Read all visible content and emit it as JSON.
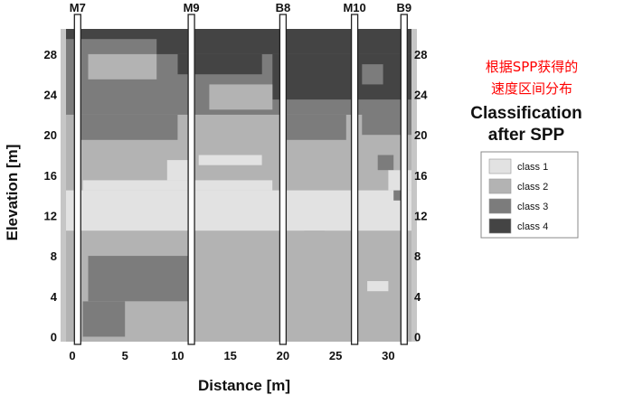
{
  "chart_data": {
    "type": "heatmap",
    "xlabel": "Distance [m]",
    "ylabel": "Elevation [m]",
    "xlim": [
      -0.6,
      32.2
    ],
    "ylim": [
      -0.5,
      30.5
    ],
    "x_ticks": [
      "0",
      "5",
      "10",
      "15",
      "20",
      "25",
      "30"
    ],
    "y_ticks": [
      "0",
      "4",
      "8",
      "12",
      "16",
      "20",
      "24",
      "28"
    ],
    "wells": [
      {
        "name": "M7",
        "x": 0.5
      },
      {
        "name": "M9",
        "x": 11.3
      },
      {
        "name": "B8",
        "x": 20.0
      },
      {
        "name": "M10",
        "x": 26.8
      },
      {
        "name": "B9",
        "x": 31.5
      }
    ],
    "annotation": "根据SPP获得的\n速度区间分布",
    "legend": {
      "title": "Classification\nafter SPP",
      "entries": [
        {
          "label": "class 1",
          "color": "#e2e2e2"
        },
        {
          "label": "class 2",
          "color": "#b3b3b3"
        },
        {
          "label": "class 3",
          "color": "#7c7c7c"
        },
        {
          "label": "class 4",
          "color": "#444444"
        }
      ]
    },
    "colors": {
      "class1": "#e2e2e2",
      "class2": "#b3b3b3",
      "class3": "#7c7c7c",
      "class4": "#444444",
      "side_strip": "#c6c6c6"
    },
    "regions": [
      {
        "class": 2,
        "x": [
          -0.6,
          32.2
        ],
        "y": [
          -0.5,
          30.5
        ]
      },
      {
        "class": 3,
        "x": [
          -0.6,
          32.2
        ],
        "y": [
          22.0,
          30.5
        ]
      },
      {
        "class": 4,
        "x": [
          -0.6,
          32.2
        ],
        "y": [
          29.5,
          30.5
        ]
      },
      {
        "class": 4,
        "x": [
          8.0,
          32.2
        ],
        "y": [
          28.0,
          30.5
        ]
      },
      {
        "class": 4,
        "x": [
          10.0,
          18.0
        ],
        "y": [
          26.0,
          28.0
        ]
      },
      {
        "class": 4,
        "x": [
          19.0,
          32.2
        ],
        "y": [
          23.5,
          28.0
        ]
      },
      {
        "class": 3,
        "x": [
          27.5,
          29.5
        ],
        "y": [
          25.0,
          27.0
        ]
      },
      {
        "class": 2,
        "x": [
          1.5,
          8.0
        ],
        "y": [
          25.5,
          28.0
        ]
      },
      {
        "class": 2,
        "x": [
          13.0,
          19.0
        ],
        "y": [
          22.5,
          25.0
        ]
      },
      {
        "class": 3,
        "x": [
          0.5,
          10.0
        ],
        "y": [
          19.5,
          22.0
        ]
      },
      {
        "class": 3,
        "x": [
          20.0,
          26.0
        ],
        "y": [
          19.5,
          22.0
        ]
      },
      {
        "class": 3,
        "x": [
          27.5,
          32.2
        ],
        "y": [
          20.0,
          22.5
        ]
      },
      {
        "class": 3,
        "x": [
          29.0,
          30.5
        ],
        "y": [
          16.5,
          18.0
        ]
      },
      {
        "class": 1,
        "x": [
          -0.6,
          32.2
        ],
        "y": [
          10.5,
          14.5
        ]
      },
      {
        "class": 1,
        "x": [
          1.0,
          19.0
        ],
        "y": [
          14.5,
          15.5
        ]
      },
      {
        "class": 1,
        "x": [
          9.0,
          11.0
        ],
        "y": [
          15.5,
          17.5
        ]
      },
      {
        "class": 1,
        "x": [
          12.0,
          18.0
        ],
        "y": [
          17.0,
          18.0
        ]
      },
      {
        "class": 1,
        "x": [
          30.0,
          32.2
        ],
        "y": [
          14.5,
          16.5
        ]
      },
      {
        "class": 3,
        "x": [
          30.5,
          31.5
        ],
        "y": [
          13.5,
          14.5
        ]
      },
      {
        "class": 2,
        "x": [
          22.0,
          24.0
        ],
        "y": [
          9.5,
          10.5
        ]
      },
      {
        "class": 3,
        "x": [
          1.5,
          11.0
        ],
        "y": [
          3.5,
          8.0
        ]
      },
      {
        "class": 3,
        "x": [
          1.0,
          5.0
        ],
        "y": [
          0.0,
          3.5
        ]
      },
      {
        "class": 1,
        "x": [
          28.0,
          30.0
        ],
        "y": [
          4.5,
          5.5
        ]
      }
    ]
  }
}
